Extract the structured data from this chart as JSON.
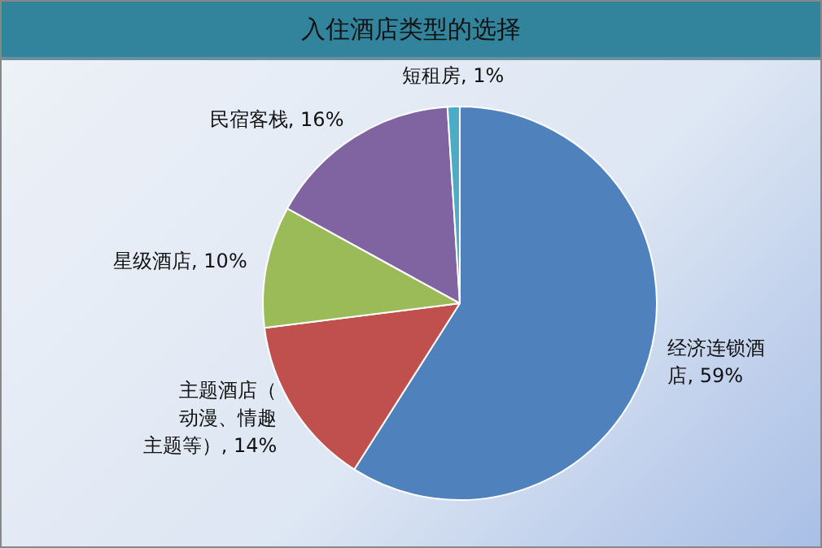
{
  "chart_data": {
    "type": "pie",
    "title": "入住酒店类型的选择",
    "categories": [
      "经济连锁酒店",
      "主题酒店（动漫、情趣主题等）",
      "星级酒店",
      "民宿客栈",
      "短租房"
    ],
    "values": [
      59,
      14,
      10,
      16,
      1
    ],
    "value_labels": [
      "59%",
      "14%",
      "10%",
      "16%",
      "1%"
    ],
    "colors": [
      "#4f81bd",
      "#c0504d",
      "#9bbb59",
      "#8064a2",
      "#4bacc6"
    ],
    "legend": false
  }
}
